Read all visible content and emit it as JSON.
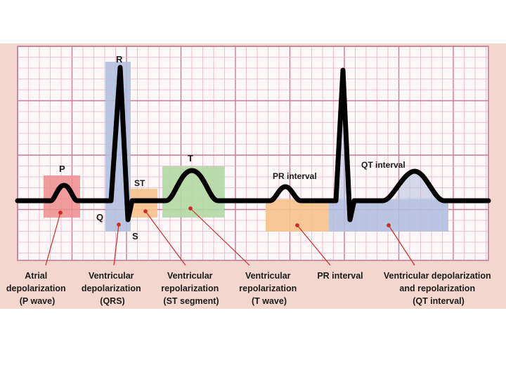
{
  "colors": {
    "background": "#f3d6cc",
    "grid_minor": "#e7b3c7",
    "grid_major": "#c37d9c",
    "trace": "#000000",
    "p_region": "#ee8d8e",
    "qrs_region": "#b3bfde",
    "st_region": "#f6c28a",
    "t_region": "#b2d8a3",
    "pr_region": "#f6c28a",
    "qt_region": "#b3bfde",
    "leader": "#cc2b2b"
  },
  "wave_labels": {
    "p": "P",
    "r": "R",
    "q": "Q",
    "s": "S",
    "st": "ST",
    "t": "T",
    "pr_interval": "PR interval",
    "qt_interval": "QT interval"
  },
  "captions": [
    {
      "lines": [
        "Atrial",
        "depolarization",
        "(P wave)"
      ]
    },
    {
      "lines": [
        "Ventricular",
        "depolarization",
        "(QRS)"
      ]
    },
    {
      "lines": [
        "Ventricular",
        "repolarization",
        "(ST segment)"
      ]
    },
    {
      "lines": [
        "Ventricular",
        "repolarization",
        "(T wave)"
      ]
    },
    {
      "lines": [
        "PR interval"
      ]
    },
    {
      "lines": [
        "Ventricular depolarization",
        "and repolarization",
        "(QT interval)"
      ]
    }
  ]
}
